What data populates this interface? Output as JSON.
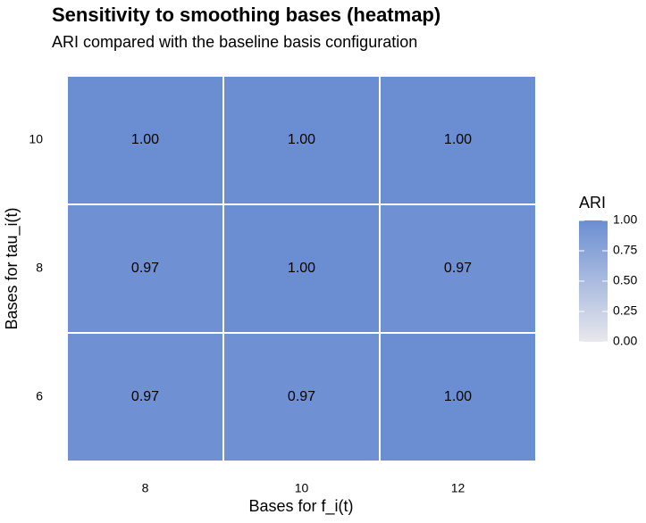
{
  "chart_data": {
    "type": "heatmap",
    "title": "Sensitivity to smoothing bases (heatmap)",
    "subtitle": "ARI compared with the baseline basis configuration",
    "x_label": "Bases for f_i(t)",
    "y_label": "Bases for tau_i(t)",
    "x_categories": [
      "8",
      "10",
      "12"
    ],
    "y_categories": [
      "6",
      "8",
      "10"
    ],
    "values": [
      [
        0.97,
        0.97,
        1
      ],
      [
        0.97,
        1,
        0.97
      ],
      [
        1,
        1,
        1
      ]
    ],
    "value_labels": [
      [
        "0.97",
        "0.97",
        "1.00"
      ],
      [
        "0.97",
        "1.00",
        "0.97"
      ],
      [
        "1.00",
        "1.00",
        "1.00"
      ]
    ],
    "legend_title": "ARI",
    "zlim": [
      0,
      1
    ],
    "zticks": [
      {
        "value": 0,
        "label": "0.00"
      },
      {
        "value": 0.25,
        "label": "0.25"
      },
      {
        "value": 0.5,
        "label": "0.50"
      },
      {
        "value": 0.75,
        "label": "0.75"
      },
      {
        "value": 1,
        "label": "1.00"
      }
    ],
    "low_color": "#e8e8ec",
    "high_color": "#6b8ed2"
  }
}
